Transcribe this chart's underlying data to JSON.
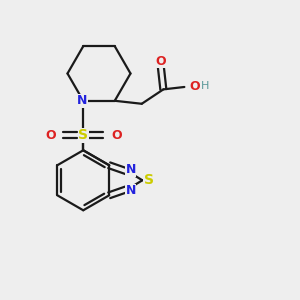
{
  "bg_color": "#eeeeee",
  "bond_color": "#1a1a1a",
  "N_color": "#2222dd",
  "O_color": "#dd2222",
  "S_color": "#cccc00",
  "H_color": "#5a9999",
  "lw": 1.6,
  "fig_width": 3.0,
  "fig_height": 3.0,
  "dpi": 100,
  "xlim": [
    0,
    10
  ],
  "ylim": [
    0,
    10
  ],
  "double_sep": 0.1
}
